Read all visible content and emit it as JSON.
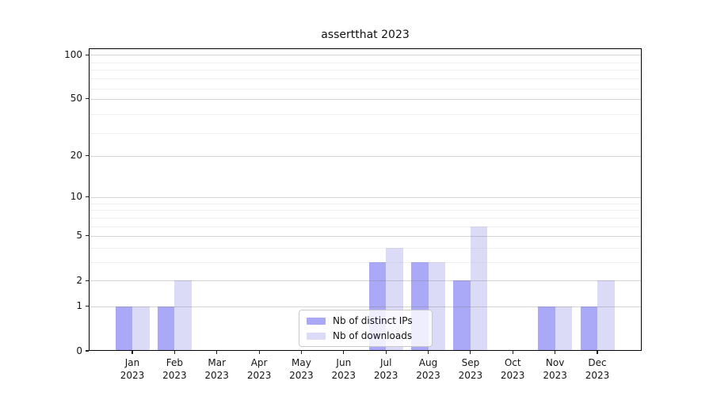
{
  "chart_data": {
    "type": "bar",
    "title": "assertthat 2023",
    "categories": [
      "Jan 2023",
      "Feb 2023",
      "Mar 2023",
      "Apr 2023",
      "May 2023",
      "Jun 2023",
      "Jul 2023",
      "Aug 2023",
      "Sep 2023",
      "Oct 2023",
      "Nov 2023",
      "Dec 2023"
    ],
    "series": [
      {
        "name": "Nb of distinct IPs",
        "color": "#a9a9f7",
        "values": [
          1,
          1,
          0,
          0,
          0,
          0,
          3,
          3,
          2,
          0,
          1,
          1
        ]
      },
      {
        "name": "Nb of downloads",
        "color": "#dbdbf8",
        "values": [
          1,
          2,
          0,
          0,
          0,
          0,
          4,
          3,
          6,
          0,
          1,
          2
        ]
      }
    ],
    "xlabel": "",
    "ylabel": "",
    "yscale": "log1p",
    "ylim": [
      0,
      111
    ],
    "yticks": [
      0,
      1,
      2,
      5,
      10,
      20,
      50,
      100
    ],
    "yticks_minor": [
      3,
      4,
      6,
      7,
      8,
      9,
      29,
      39,
      59,
      69,
      79,
      89
    ],
    "grid": true,
    "legend_position": "lower center"
  },
  "colors": {
    "background": "#ffffff",
    "axis": "#000000",
    "grid_major": "#d4d4d4",
    "grid_minor": "#f0f0f0",
    "text": "#151515"
  }
}
